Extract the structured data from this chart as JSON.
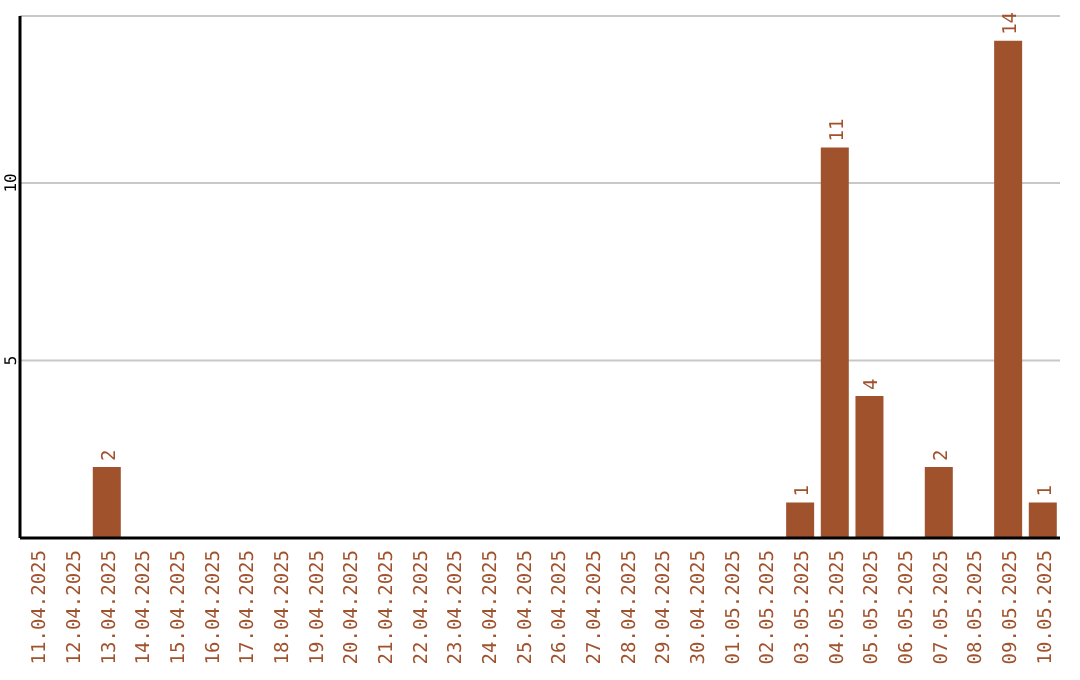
{
  "chart_data": {
    "type": "bar",
    "categories": [
      "11.04.2025",
      "12.04.2025",
      "13.04.2025",
      "14.04.2025",
      "15.04.2025",
      "16.04.2025",
      "17.04.2025",
      "18.04.2025",
      "19.04.2025",
      "20.04.2025",
      "21.04.2025",
      "22.04.2025",
      "23.04.2025",
      "24.04.2025",
      "25.04.2025",
      "26.04.2025",
      "27.04.2025",
      "28.04.2025",
      "29.04.2025",
      "30.04.2025",
      "01.05.2025",
      "02.05.2025",
      "03.05.2025",
      "04.05.2025",
      "05.05.2025",
      "06.05.2025",
      "07.05.2025",
      "08.05.2025",
      "09.05.2025",
      "10.05.2025"
    ],
    "values": [
      0,
      0,
      2,
      0,
      0,
      0,
      0,
      0,
      0,
      0,
      0,
      0,
      0,
      0,
      0,
      0,
      0,
      0,
      0,
      0,
      0,
      0,
      1,
      11,
      4,
      0,
      2,
      0,
      14,
      1
    ],
    "value_labels": [
      null,
      null,
      "2",
      null,
      null,
      null,
      null,
      null,
      null,
      null,
      null,
      null,
      null,
      null,
      null,
      null,
      null,
      null,
      null,
      null,
      null,
      null,
      "1",
      "11",
      "4",
      null,
      "2",
      null,
      "14",
      "1"
    ],
    "color": "#a0522d",
    "ylim": [
      0,
      14.7
    ],
    "yticks": [
      5,
      10
    ],
    "grid": "y"
  }
}
